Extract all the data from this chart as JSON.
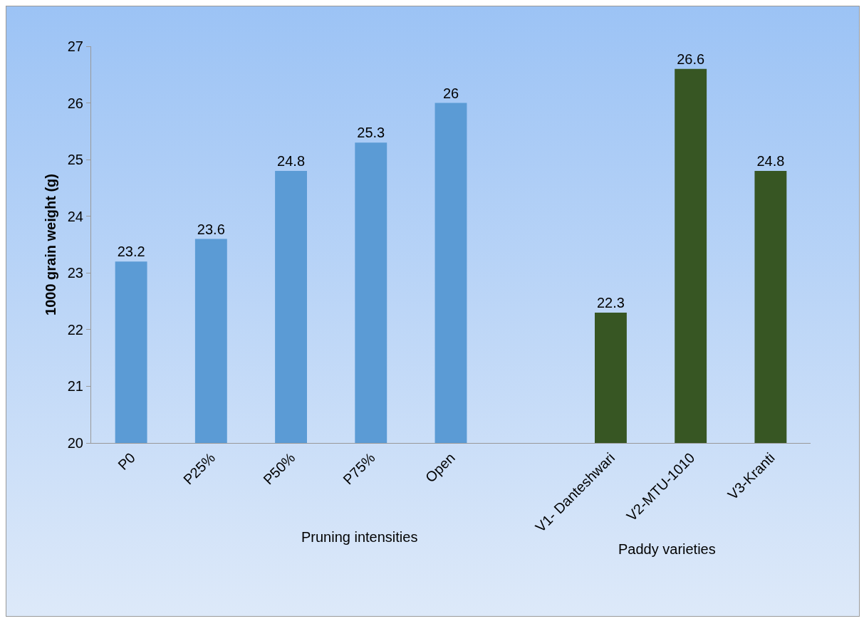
{
  "chart_data": {
    "type": "bar",
    "ylabel": "1000 grain weight (g)",
    "categories": [
      "P0",
      "P25%",
      "P50%",
      "P75%",
      "Open",
      null,
      "V1- Danteshwari",
      "V2-MTU-1010",
      "V3-Kranti"
    ],
    "values": [
      23.2,
      23.6,
      24.8,
      25.3,
      26,
      null,
      22.3,
      26.6,
      24.8
    ],
    "colors": [
      "#5b9bd5",
      "#5b9bd5",
      "#5b9bd5",
      "#5b9bd5",
      "#5b9bd5",
      null,
      "#375623",
      "#375623",
      "#375623"
    ],
    "ylim": [
      20,
      27
    ],
    "yticks": [
      20,
      21,
      22,
      23,
      24,
      25,
      26,
      27
    ],
    "data_labels": true,
    "grid": false,
    "annotations": [
      "Pruning intensities",
      "Paddy varieties"
    ]
  }
}
